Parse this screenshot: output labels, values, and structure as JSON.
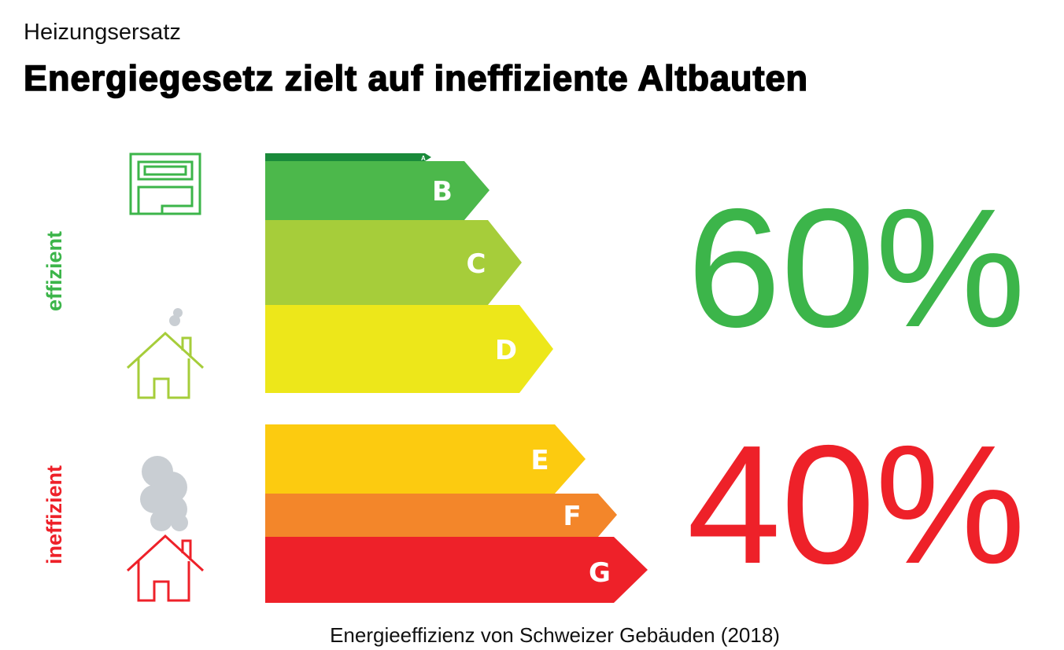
{
  "header": {
    "kicker": "Heizungsersatz",
    "title": "Energiegesetz zielt auf ineffiziente Altbauten"
  },
  "side_labels": [
    "effizient",
    "ineffizient"
  ],
  "classes": [
    "A",
    "B",
    "C",
    "D",
    "E",
    "F",
    "G"
  ],
  "shares": [
    "60%",
    "40%"
  ],
  "caption": "Energieeffizienz von Schweizer Gebäuden (2018)"
}
